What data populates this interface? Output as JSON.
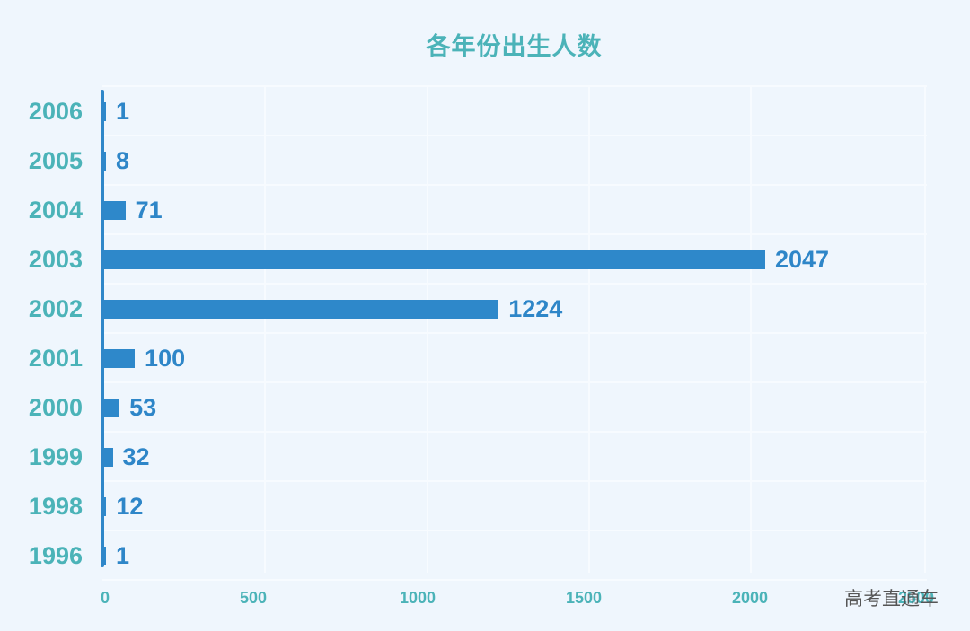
{
  "chart_data": {
    "type": "bar",
    "orientation": "horizontal",
    "title": "各年份出生人数",
    "xlabel": "",
    "ylabel": "",
    "categories": [
      "2006",
      "2005",
      "2004",
      "2003",
      "2002",
      "2001",
      "2000",
      "1999",
      "1998",
      "1996"
    ],
    "values": [
      1,
      8,
      71,
      2047,
      1224,
      100,
      53,
      32,
      12,
      1
    ],
    "xlim": [
      0,
      2500
    ],
    "x_ticks": [
      "0",
      "500",
      "1000",
      "1500",
      "2000",
      "2500"
    ],
    "grid": true,
    "bar_color": "#2e88ca",
    "label_color": "#4bb3b8",
    "value_label_color": "#2e86c8"
  },
  "watermark": "高考直通车"
}
